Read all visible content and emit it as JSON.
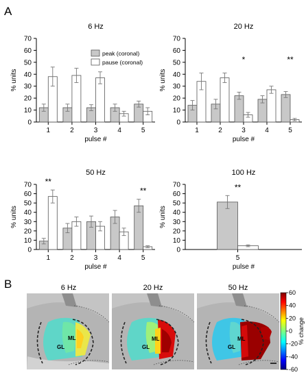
{
  "panel_labels": {
    "a": "A",
    "b": "B"
  },
  "legend": {
    "peak": "peak (coronal)",
    "pause": "pause (coronal)"
  },
  "colors": {
    "peak": "#c8c8c8",
    "pause": "#ffffff",
    "bar_edge": "#555555",
    "axis": "#000000",
    "error": "#777777"
  },
  "chart_data": [
    {
      "type": "bar",
      "title": "6 Hz",
      "xlabel": "pulse #",
      "ylabel": "% units",
      "categories": [
        "1",
        "2",
        "3",
        "4",
        "5"
      ],
      "ylim": [
        0,
        70
      ],
      "yticks": [
        "0",
        "10",
        "20",
        "30",
        "40",
        "50",
        "60",
        "70"
      ],
      "series": [
        {
          "name": "peak (coronal)",
          "values": [
            12,
            12,
            12,
            12,
            15
          ],
          "errors": [
            3,
            3,
            2.5,
            3,
            2.5
          ]
        },
        {
          "name": "pause (coronal)",
          "values": [
            38,
            39,
            37,
            7,
            9
          ],
          "errors": [
            8,
            6,
            5,
            2,
            3
          ]
        }
      ],
      "annotations": []
    },
    {
      "type": "bar",
      "title": "20 Hz",
      "xlabel": "pulse #",
      "ylabel": "% units",
      "categories": [
        "1",
        "2",
        "3",
        "4",
        "5"
      ],
      "ylim": [
        0,
        70
      ],
      "yticks": [
        "0",
        "10",
        "20",
        "30",
        "40",
        "50",
        "60",
        "70"
      ],
      "series": [
        {
          "name": "peak (coronal)",
          "values": [
            14,
            15,
            22,
            19,
            23
          ],
          "errors": [
            4,
            4,
            3,
            3,
            2.5
          ]
        },
        {
          "name": "pause (coronal)",
          "values": [
            34,
            37,
            6,
            27,
            2
          ],
          "errors": [
            7,
            4,
            2,
            3,
            1
          ]
        }
      ],
      "annotations": [
        {
          "category": "3",
          "text": "*"
        },
        {
          "category": "5",
          "text": "**"
        }
      ]
    },
    {
      "type": "bar",
      "title": "50 Hz",
      "xlabel": "pulse #",
      "ylabel": "% units",
      "categories": [
        "1",
        "2",
        "3",
        "4",
        "5"
      ],
      "ylim": [
        0,
        70
      ],
      "yticks": [
        "0",
        "10",
        "20",
        "30",
        "40",
        "50",
        "60",
        "70"
      ],
      "series": [
        {
          "name": "peak (coronal)",
          "values": [
            9,
            23,
            30,
            35,
            47
          ],
          "errors": [
            3,
            5,
            6,
            7,
            7
          ]
        },
        {
          "name": "pause (coronal)",
          "values": [
            57,
            30,
            25,
            19,
            3
          ],
          "errors": [
            7,
            5,
            5,
            4,
            1
          ]
        }
      ],
      "annotations": [
        {
          "category": "1",
          "text": "**"
        },
        {
          "category": "5",
          "text": "**"
        }
      ]
    },
    {
      "type": "bar",
      "title": "100 Hz",
      "xlabel": "pulse #",
      "ylabel": "% units",
      "categories": [
        "5"
      ],
      "ylim": [
        0,
        70
      ],
      "yticks": [
        "0",
        "10",
        "20",
        "30",
        "40",
        "50",
        "60",
        "70"
      ],
      "series": [
        {
          "name": "peak (coronal)",
          "values": [
            51
          ],
          "errors": [
            7
          ]
        },
        {
          "name": "pause (coronal)",
          "values": [
            4
          ],
          "errors": [
            1
          ]
        }
      ],
      "annotations": [
        {
          "category": "5",
          "text": "**"
        }
      ]
    }
  ],
  "heatmaps": {
    "titles": [
      "6 Hz",
      "20 Hz",
      "50 Hz"
    ],
    "region_labels": {
      "ml": "ML",
      "gl": "GL"
    },
    "colorbar": {
      "label": "% change",
      "ticks": [
        "60",
        "40",
        "20",
        "0",
        "-20",
        "-40",
        "-60"
      ],
      "range": [
        -60,
        60
      ]
    }
  }
}
